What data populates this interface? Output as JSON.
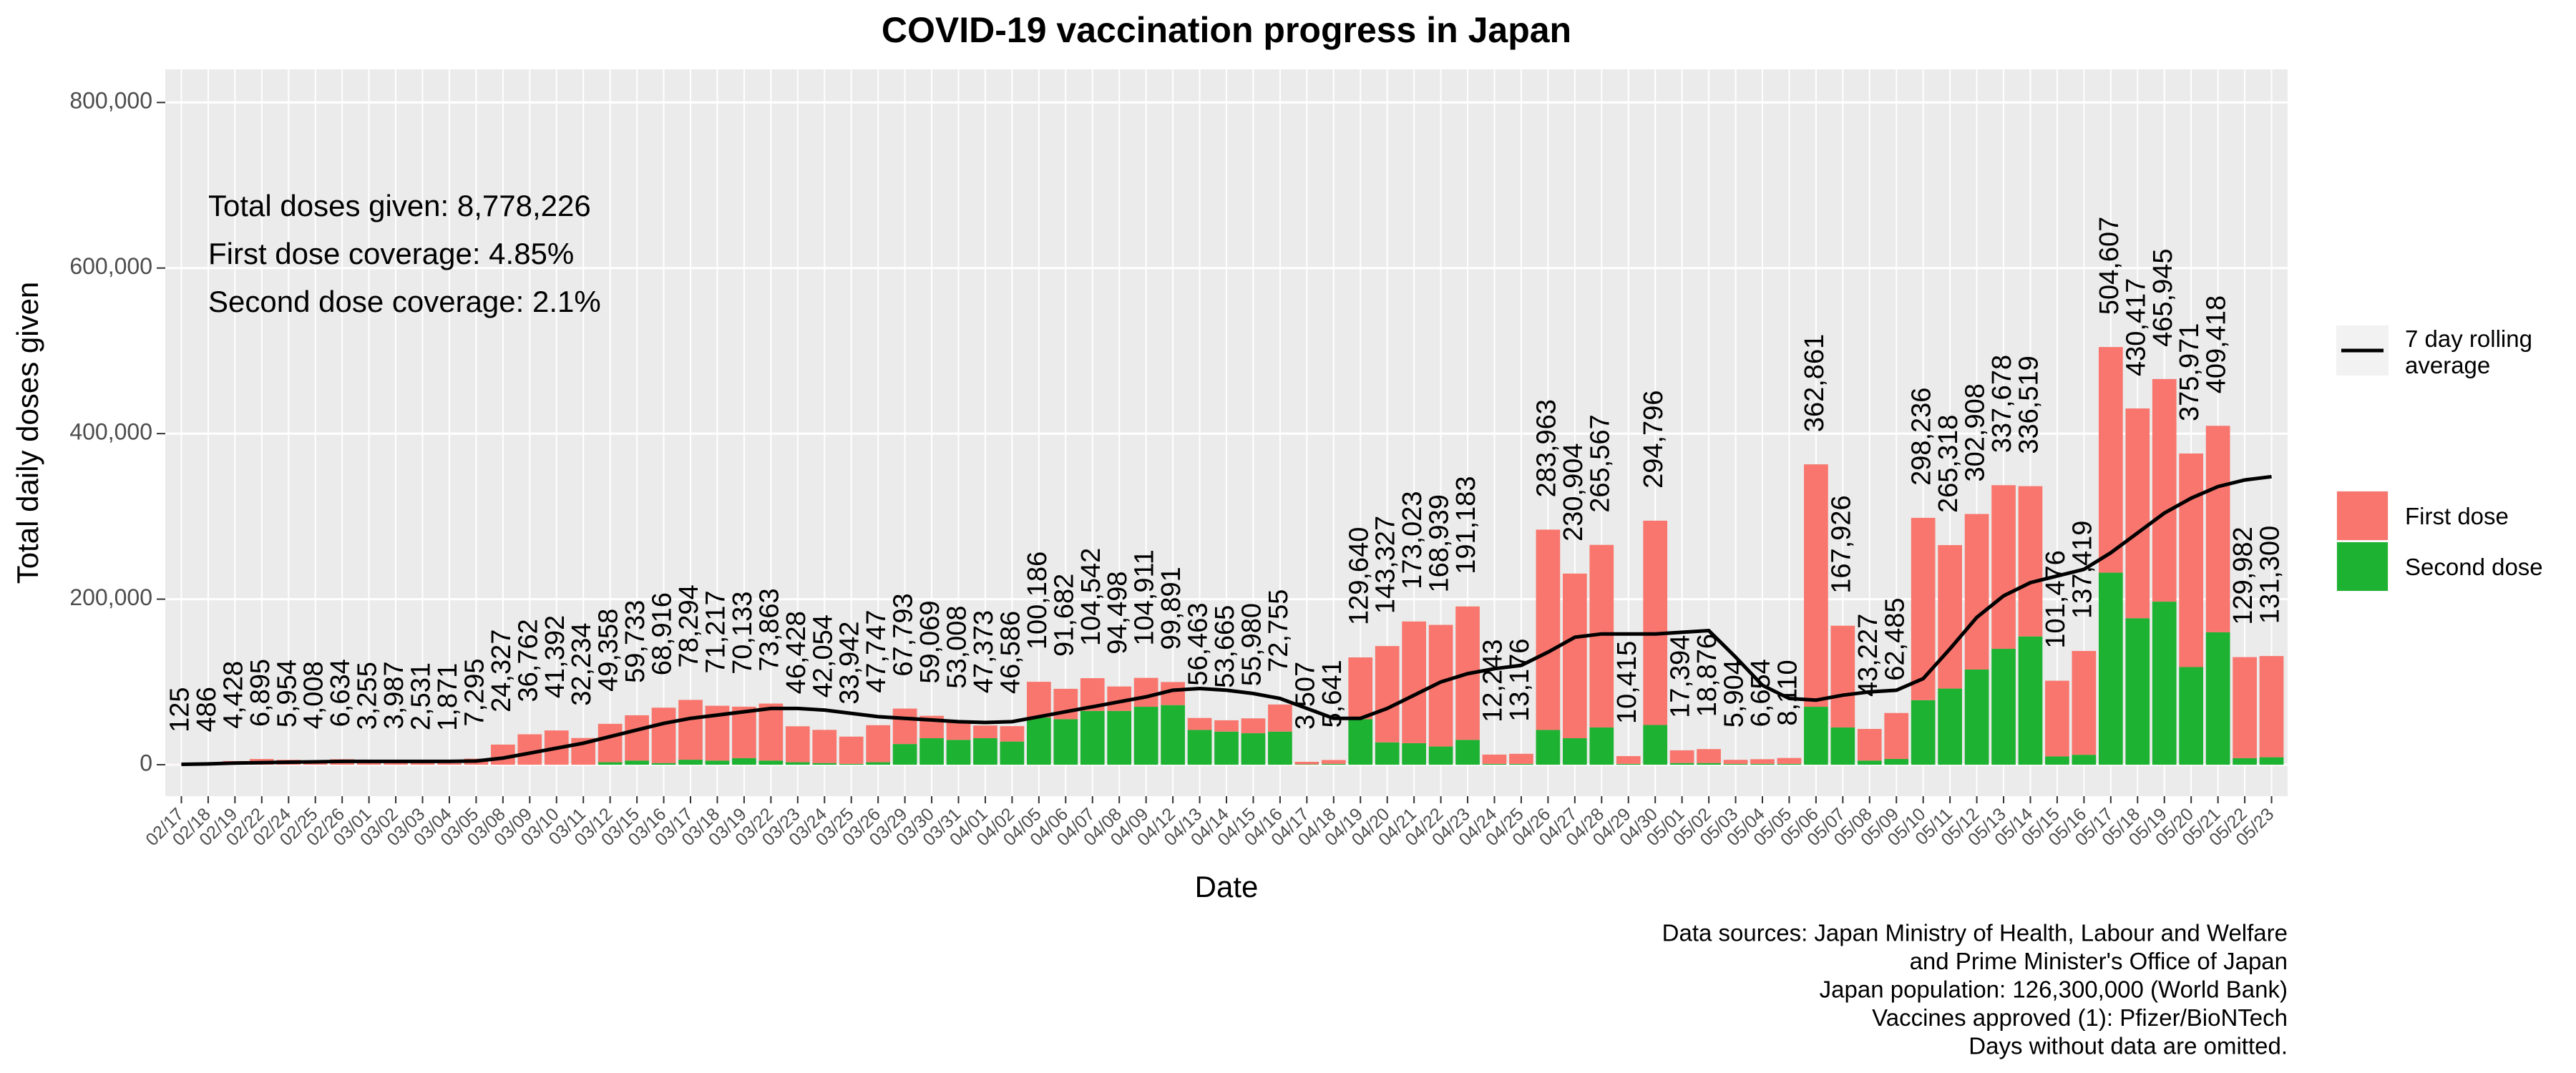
{
  "chart_data": {
    "type": "bar",
    "stacked": true,
    "grid": true,
    "legend": "right",
    "title": "COVID-19 vaccination progress in Japan",
    "x_label": "Date",
    "y_label": "Total daily doses given",
    "categories": [
      "02/17",
      "02/18",
      "02/19",
      "02/22",
      "02/24",
      "02/25",
      "02/26",
      "03/01",
      "03/02",
      "03/03",
      "03/04",
      "03/05",
      "03/08",
      "03/09",
      "03/10",
      "03/11",
      "03/12",
      "03/15",
      "03/16",
      "03/17",
      "03/18",
      "03/19",
      "03/22",
      "03/23",
      "03/24",
      "03/25",
      "03/26",
      "03/29",
      "03/30",
      "03/31",
      "04/01",
      "04/02",
      "04/05",
      "04/06",
      "04/07",
      "04/08",
      "04/09",
      "04/12",
      "04/13",
      "04/14",
      "04/15",
      "04/16",
      "04/17",
      "04/18",
      "04/19",
      "04/20",
      "04/21",
      "04/22",
      "04/23",
      "04/24",
      "04/25",
      "04/26",
      "04/27",
      "04/28",
      "04/29",
      "04/30",
      "05/01",
      "05/02",
      "05/03",
      "05/04",
      "05/05",
      "05/06",
      "05/07",
      "05/08",
      "05/09",
      "05/10",
      "05/11",
      "05/12",
      "05/13",
      "05/14",
      "05/15",
      "05/16",
      "05/17",
      "05/18",
      "05/19",
      "05/20",
      "05/21",
      "05/22",
      "05/23"
    ],
    "series": [
      {
        "name": "First dose",
        "color": "#F8766D",
        "values": [
          125,
          486,
          4428,
          6895,
          5954,
          4008,
          6634,
          3255,
          3987,
          2531,
          1871,
          7295,
          24327,
          36762,
          41392,
          32234,
          46358,
          54733,
          66916,
          72294,
          66217,
          62133,
          68863,
          43428,
          40054,
          32942,
          44747,
          42793,
          27069,
          23008,
          15373,
          18586,
          43186,
          36682,
          39542,
          29498,
          34911,
          27891,
          14463,
          13665,
          17980,
          32755,
          3007,
          4641,
          74640,
          116327,
          147023,
          146939,
          161183,
          11243,
          12176,
          241963,
          198904,
          220567,
          9415,
          246796,
          15394,
          16876,
          4904,
          5654,
          7110,
          292861,
          122926,
          38227,
          55485,
          220236,
          173318,
          187908,
          197678,
          181519,
          91476,
          125419,
          272607,
          253417,
          268945,
          257971,
          249418,
          121982,
          122300
        ]
      },
      {
        "name": "Second dose",
        "color": "#1DB232",
        "values": [
          0,
          0,
          0,
          0,
          0,
          0,
          0,
          0,
          0,
          0,
          0,
          0,
          0,
          0,
          0,
          0,
          3000,
          5000,
          2000,
          6000,
          5000,
          8000,
          5000,
          3000,
          2000,
          1000,
          3000,
          25000,
          32000,
          30000,
          32000,
          28000,
          57000,
          55000,
          65000,
          65000,
          70000,
          72000,
          42000,
          40000,
          38000,
          40000,
          500,
          1000,
          55000,
          27000,
          26000,
          22000,
          30000,
          1000,
          1000,
          42000,
          32000,
          45000,
          1000,
          48000,
          2000,
          2000,
          1000,
          1000,
          1000,
          70000,
          45000,
          5000,
          7000,
          78000,
          92000,
          115000,
          140000,
          155000,
          10000,
          12000,
          232000,
          177000,
          197000,
          118000,
          160000,
          8000,
          9000
        ]
      },
      {
        "name": "7 day rolling\n average",
        "type": "line",
        "color": "#000000",
        "values": [
          500,
          1000,
          2000,
          2500,
          3000,
          3500,
          4000,
          4000,
          4000,
          4000,
          4000,
          4500,
          8000,
          14000,
          20000,
          26000,
          34000,
          42000,
          50000,
          56000,
          60000,
          64000,
          68000,
          68000,
          66000,
          62000,
          58000,
          56000,
          54000,
          52000,
          51000,
          52000,
          58000,
          64000,
          70000,
          76000,
          82000,
          90000,
          92000,
          90000,
          86000,
          80000,
          68000,
          56000,
          56000,
          68000,
          84000,
          100000,
          110000,
          116000,
          120000,
          136000,
          154000,
          158000,
          158000,
          158000,
          160000,
          162000,
          130000,
          96000,
          80000,
          78000,
          84000,
          88000,
          90000,
          104000,
          140000,
          178000,
          204000,
          220000,
          228000,
          236000,
          256000,
          280000,
          304000,
          322000,
          336000,
          344000,
          348000
        ]
      }
    ],
    "totals": {
      "values": [
        125,
        486,
        4428,
        6895,
        5954,
        4008,
        6634,
        3255,
        3987,
        2531,
        1871,
        7295,
        24327,
        36762,
        41392,
        32234,
        49358,
        59733,
        68916,
        78294,
        71217,
        70133,
        73863,
        46428,
        42054,
        33942,
        47747,
        67793,
        59069,
        53008,
        47373,
        46586,
        100186,
        91682,
        104542,
        94498,
        104911,
        99891,
        56463,
        53665,
        55980,
        72755,
        3507,
        5641,
        129640,
        143327,
        173023,
        168939,
        191183,
        12243,
        13176,
        283963,
        230904,
        265567,
        10415,
        294796,
        17394,
        18876,
        5904,
        6654,
        8110,
        362861,
        167926,
        43227,
        62485,
        298236,
        265318,
        302908,
        337678,
        336519,
        101476,
        137419,
        504607,
        430417,
        465945,
        375971,
        409418,
        129982,
        131300
      ],
      "value_labels": [
        "125",
        "486",
        "4,428",
        "6,895",
        "5,954",
        "4,008",
        "6,634",
        "3,255",
        "3,987",
        "2,531",
        "1,871",
        "7,295",
        "24,327",
        "36,762",
        "41,392",
        "32,234",
        "49,358",
        "59,733",
        "68,916",
        "78,294",
        "71,217",
        "70,133",
        "73,863",
        "46,428",
        "42,054",
        "33,942",
        "47,747",
        "67,793",
        "59,069",
        "53,008",
        "47,373",
        "46,586",
        "100,186",
        "91,682",
        "104,542",
        "94,498",
        "104,911",
        "99,891",
        "56,463",
        "53,665",
        "55,980",
        "72,755",
        "3,507",
        "5,641",
        "129,640",
        "143,327",
        "173,023",
        "168,939",
        "191,183",
        "12,243",
        "13,176",
        "283,963",
        "230,904",
        "265,567",
        "10,415",
        "294,796",
        "17,394",
        "18,876",
        "5,904",
        "6,654",
        "8,110",
        "362,861",
        "167,926",
        "43,227",
        "62,485",
        "298,236",
        "265,318",
        "302,908",
        "337,678",
        "336,519",
        "101,476",
        "137,419",
        "504,607",
        "430,417",
        "465,945",
        "375,971",
        "409,418",
        "129,982",
        "131,300"
      ]
    },
    "ylim": [
      -38000,
      840000
    ],
    "yticks": [
      0,
      {
        "value": 200000,
        "label": "200,000"
      },
      {
        "value": 400000,
        "label": "400,000"
      },
      {
        "value": 600000,
        "label": "600,000"
      },
      {
        "value": 800000,
        "label": "800,000"
      }
    ],
    "annotations": [
      "Total doses given: 8,778,226",
      "First dose coverage: 4.85%",
      "Second dose coverage: 2.1%"
    ],
    "caption": [
      "Data sources: Japan Ministry of Health, Labour and Welfare",
      "and Prime Minister's Office of Japan",
      "Japan population: 126,300,000 (World Bank)",
      "Vaccines approved (1): Pfizer/BioNTech",
      "Days without data are omitted."
    ]
  }
}
